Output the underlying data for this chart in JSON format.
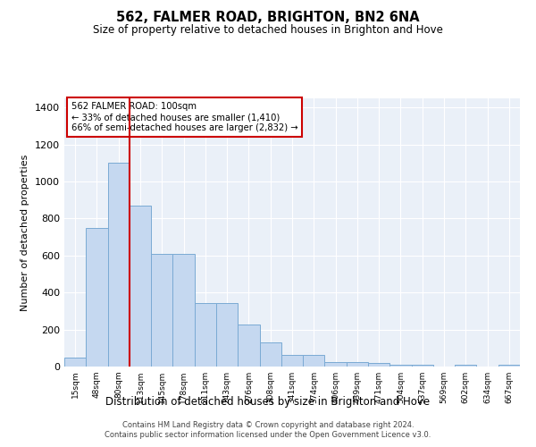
{
  "title": "562, FALMER ROAD, BRIGHTON, BN2 6NA",
  "subtitle": "Size of property relative to detached houses in Brighton and Hove",
  "xlabel": "Distribution of detached houses by size in Brighton and Hove",
  "ylabel": "Number of detached properties",
  "footer1": "Contains HM Land Registry data © Crown copyright and database right 2024.",
  "footer2": "Contains public sector information licensed under the Open Government Licence v3.0.",
  "property_label": "562 FALMER ROAD: 100sqm",
  "annotation1": "← 33% of detached houses are smaller (1,410)",
  "annotation2": "66% of semi-detached houses are larger (2,832) →",
  "bar_color": "#c5d8f0",
  "bar_edge_color": "#7aaad4",
  "red_line_color": "#cc0000",
  "background_color": "#eaf0f8",
  "categories": [
    "15sqm",
    "48sqm",
    "80sqm",
    "113sqm",
    "145sqm",
    "178sqm",
    "211sqm",
    "243sqm",
    "276sqm",
    "308sqm",
    "341sqm",
    "374sqm",
    "406sqm",
    "439sqm",
    "471sqm",
    "504sqm",
    "537sqm",
    "569sqm",
    "602sqm",
    "634sqm",
    "667sqm"
  ],
  "values": [
    50,
    750,
    1100,
    870,
    610,
    610,
    345,
    345,
    225,
    130,
    65,
    65,
    25,
    25,
    20,
    8,
    8,
    2,
    8,
    2,
    8
  ],
  "ylim": [
    0,
    1450
  ],
  "yticks": [
    0,
    200,
    400,
    600,
    800,
    1000,
    1200,
    1400
  ],
  "red_line_x": 2.5
}
